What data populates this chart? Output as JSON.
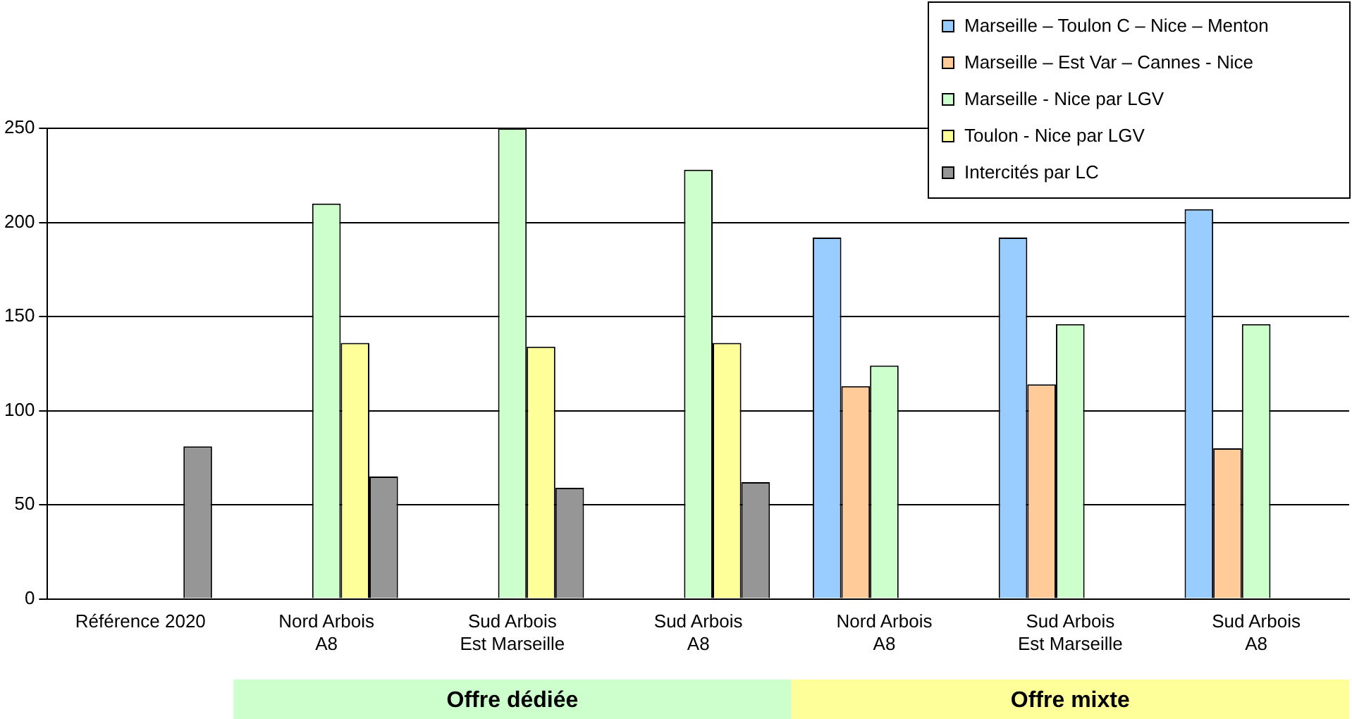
{
  "chart_data": {
    "type": "bar",
    "categories": [
      "Référence 2020",
      "Nord Arbois\nA8",
      "Sud Arbois\nEst Marseille",
      "Sud Arbois\nA8",
      "Nord Arbois\nA8",
      "Sud Arbois\nEst Marseille",
      "Sud Arbois\nA8"
    ],
    "series": [
      {
        "name": "Marseille – Toulon C – Nice – Menton",
        "color": "#99ccff",
        "values": [
          null,
          null,
          null,
          null,
          192,
          192,
          207
        ]
      },
      {
        "name": "Marseille – Est Var – Cannes - Nice",
        "color": "#ffcc99",
        "values": [
          null,
          null,
          null,
          null,
          113,
          114,
          80
        ]
      },
      {
        "name": "Marseille - Nice par LGV",
        "color": "#ccffcc",
        "values": [
          null,
          210,
          250,
          228,
          124,
          146,
          146
        ]
      },
      {
        "name": "Toulon - Nice par LGV",
        "color": "#ffff99",
        "values": [
          null,
          136,
          134,
          136,
          null,
          null,
          null
        ]
      },
      {
        "name": "Intercités par LC",
        "color": "#969696",
        "values": [
          81,
          65,
          59,
          62,
          null,
          null,
          null
        ]
      }
    ],
    "ylim": [
      0,
      250
    ],
    "yticks": [
      0,
      50,
      100,
      150,
      200,
      250
    ],
    "grid": "y",
    "legend": "top right",
    "annotations": [
      "Offre dédiée",
      "Offre mixte"
    ]
  }
}
